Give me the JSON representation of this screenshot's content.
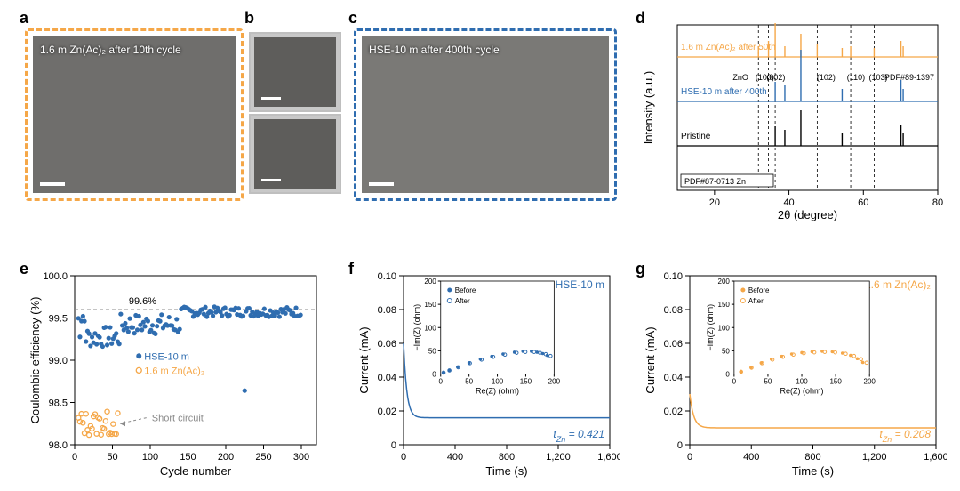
{
  "panels": {
    "a": "a",
    "b": "b",
    "c": "c",
    "d": "d",
    "e": "e",
    "f": "f",
    "g": "g"
  },
  "colors": {
    "orange": "#f5a748",
    "blue": "#2f6db0",
    "black": "#000000",
    "grey": "#8a8a8a",
    "axis": "#000000",
    "bg": "#ffffff"
  },
  "sem": {
    "a": {
      "caption": "1.6 m Zn(Ac)₂ after 10th cycle",
      "border": "#f5a748"
    },
    "c": {
      "caption": "HSE-10 m after 400th cycle",
      "border": "#2f6db0"
    }
  },
  "xrd": {
    "xlabel": "2θ (degree)",
    "ylabel": "Intensity (a.u.)",
    "xlim": [
      10,
      80
    ],
    "xticks": [
      20,
      40,
      60,
      80
    ],
    "dash_x": [
      31.8,
      34.5,
      36.3,
      47.6,
      56.6,
      62.9
    ],
    "dash_labels": [
      [
        "ZnO",
        27
      ],
      [
        "(100)",
        33.5
      ],
      [
        "(002)",
        36.5
      ],
      [
        "(102)",
        50
      ],
      [
        "(110)",
        58
      ],
      [
        "(103)",
        64
      ]
    ],
    "pdf_top": "PDF#89-1397",
    "pdf_bot": "PDF#87-0713 Zn",
    "traces": [
      {
        "name": "1.6 m Zn(Ac)₂ after 50th",
        "color": "#f5a748",
        "y0": 150,
        "peaks": [
          [
            31.8,
            12
          ],
          [
            34.5,
            18
          ],
          [
            36.3,
            38
          ],
          [
            38.9,
            12
          ],
          [
            43.2,
            26
          ],
          [
            47.6,
            14
          ],
          [
            54.3,
            10
          ],
          [
            56.6,
            12
          ],
          [
            62.9,
            10
          ],
          [
            70.1,
            18
          ],
          [
            70.7,
            12
          ]
        ]
      },
      {
        "name": "HSE-10 m after 400th",
        "color": "#2f6db0",
        "y0": 100,
        "peaks": [
          [
            36.3,
            22
          ],
          [
            38.9,
            18
          ],
          [
            43.2,
            58
          ],
          [
            54.3,
            14
          ],
          [
            70.1,
            24
          ],
          [
            70.7,
            14
          ]
        ]
      },
      {
        "name": "Pristine",
        "color": "#000000",
        "y0": 50,
        "peaks": [
          [
            36.3,
            22
          ],
          [
            38.9,
            18
          ],
          [
            43.2,
            40
          ],
          [
            54.3,
            14
          ],
          [
            70.1,
            24
          ],
          [
            70.7,
            14
          ]
        ]
      }
    ]
  },
  "ce": {
    "xlabel": "Cycle number",
    "ylabel": "Coulombic efficiency (%)",
    "xlim": [
      0,
      320
    ],
    "xticks": [
      0,
      50,
      100,
      150,
      200,
      250,
      300
    ],
    "ylim": [
      98.0,
      100.0
    ],
    "yticks": [
      98.0,
      98.5,
      99.0,
      99.5,
      100.0
    ],
    "avg_line": 99.6,
    "avg_label": "99.6%",
    "series": [
      {
        "label": "HSE-10 m",
        "color": "#2f6db0",
        "filled": true
      },
      {
        "label": "1.6 m Zn(Ac)₂",
        "color": "#f5a748",
        "filled": false
      }
    ],
    "short_label": "Short circuit",
    "short_xy": [
      110,
      98.2
    ]
  },
  "current": {
    "xlabel": "Time (s)",
    "ylabel": "Current (mA)",
    "xlim": [
      0,
      1600
    ],
    "xticks": [
      0,
      400,
      800,
      1200,
      1600
    ],
    "ylim": [
      0,
      0.1
    ],
    "yticks": [
      0,
      0.02,
      0.04,
      0.06,
      0.08,
      0.1
    ],
    "inset": {
      "xlabel": "Re(Z) (ohm)",
      "ylabel": "−Im(Z) (ohm)",
      "xlim": [
        0,
        200
      ],
      "ylim": [
        0,
        200
      ],
      "ticks": [
        0,
        50,
        100,
        150,
        200
      ],
      "legend": [
        "Before",
        "After"
      ]
    },
    "f": {
      "title": "HSE-10 m",
      "color": "#2f6db0",
      "t_label": "t₂ₙ = 0.421",
      "t_text": "t_Zn = 0.421",
      "curve_start": 0.06,
      "curve_end": 0.016,
      "nyq": [
        [
          5,
          3
        ],
        [
          15,
          8
        ],
        [
          30,
          15
        ],
        [
          50,
          24
        ],
        [
          70,
          32
        ],
        [
          90,
          38
        ],
        [
          110,
          43
        ],
        [
          130,
          47
        ],
        [
          145,
          49
        ],
        [
          160,
          49
        ],
        [
          170,
          47
        ],
        [
          180,
          44
        ],
        [
          188,
          40
        ]
      ]
    },
    "g": {
      "title": "1.6 m Zn(Ac)₂",
      "color": "#f5a748",
      "t_text": "t_Zn = 0.208",
      "curve_start": 0.03,
      "curve_end": 0.01,
      "nyq": [
        [
          10,
          5
        ],
        [
          25,
          14
        ],
        [
          40,
          24
        ],
        [
          55,
          32
        ],
        [
          70,
          38
        ],
        [
          85,
          43
        ],
        [
          100,
          46
        ],
        [
          115,
          48
        ],
        [
          130,
          49
        ],
        [
          145,
          48
        ],
        [
          160,
          45
        ],
        [
          172,
          40
        ],
        [
          182,
          33
        ],
        [
          190,
          25
        ]
      ]
    }
  },
  "fonts": {
    "label": 13,
    "tick": 11,
    "small": 10,
    "legend": 11
  }
}
